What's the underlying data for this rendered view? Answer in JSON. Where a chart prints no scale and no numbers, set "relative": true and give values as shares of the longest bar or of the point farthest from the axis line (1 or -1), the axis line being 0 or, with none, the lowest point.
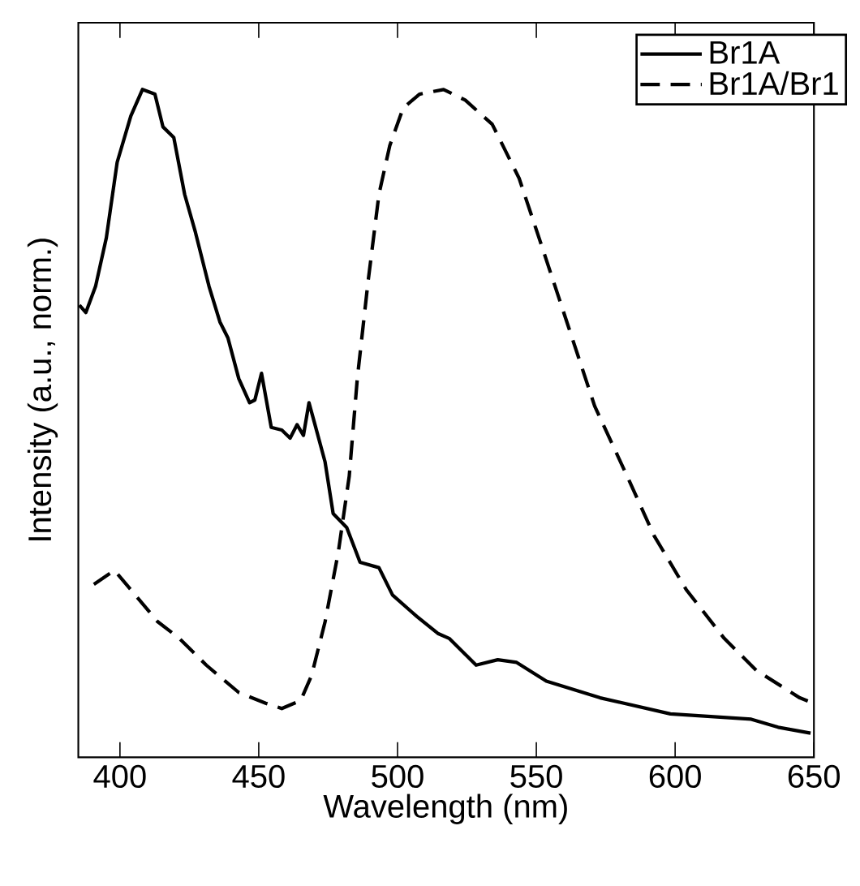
{
  "chart_data": {
    "type": "line",
    "xlabel": "Wavelength (nm)",
    "ylabel": "Intensity (a.u., norm.)",
    "relative": true,
    "xlim": [
      385,
      650
    ],
    "xticks": [
      400,
      450,
      500,
      550,
      600,
      650
    ],
    "legend": "top right",
    "grid": false,
    "marker": "none",
    "series": [
      {
        "name": "Br1A",
        "color": "#000000",
        "line_style": "solid",
        "x": [
          385.4,
          387.7,
          391.2,
          395.1,
          399.0,
          403.9,
          408.1,
          412.6,
          415.5,
          419.4,
          423.3,
          427.2,
          432.1,
          436.0,
          438.9,
          442.8,
          446.7,
          448.6,
          451.0,
          454.5,
          458.3,
          461.3,
          463.8,
          466.1,
          468.1,
          470.0,
          473.9,
          476.8,
          481.7,
          486.5,
          493.3,
          498.2,
          506.9,
          514.7,
          518.6,
          528.3,
          536.1,
          542.9,
          553.6,
          573.0,
          598.3,
          627.4,
          637.1,
          648.8
        ],
        "values": [
          0.677,
          0.666,
          0.705,
          0.778,
          0.891,
          0.96,
          1.0,
          0.993,
          0.944,
          0.928,
          0.843,
          0.786,
          0.705,
          0.652,
          0.628,
          0.567,
          0.531,
          0.535,
          0.575,
          0.494,
          0.49,
          0.478,
          0.498,
          0.482,
          0.531,
          0.502,
          0.442,
          0.365,
          0.344,
          0.292,
          0.284,
          0.243,
          0.211,
          0.185,
          0.178,
          0.138,
          0.146,
          0.142,
          0.114,
          0.089,
          0.065,
          0.057,
          0.045,
          0.036
        ]
      },
      {
        "name": "Br1A/Br1",
        "color": "#000000",
        "line_style": "dashed",
        "x": [
          390.6,
          398.0,
          403.9,
          413.6,
          421.4,
          431.1,
          442.8,
          452.5,
          458.3,
          465.1,
          469.0,
          473.9,
          478.7,
          482.6,
          485.5,
          489.4,
          493.3,
          497.2,
          502.0,
          507.9,
          516.6,
          524.4,
          534.1,
          543.8,
          551.6,
          561.3,
          571.0,
          582.7,
          592.4,
          604.0,
          617.7,
          629.3,
          644.9,
          649.8
        ],
        "values": [
          0.259,
          0.28,
          0.251,
          0.203,
          0.178,
          0.138,
          0.097,
          0.081,
          0.073,
          0.085,
          0.122,
          0.203,
          0.308,
          0.421,
          0.567,
          0.713,
          0.843,
          0.916,
          0.972,
          0.993,
          1.0,
          0.984,
          0.948,
          0.867,
          0.77,
          0.648,
          0.526,
          0.421,
          0.332,
          0.251,
          0.178,
          0.13,
          0.089,
          0.081
        ]
      }
    ]
  }
}
